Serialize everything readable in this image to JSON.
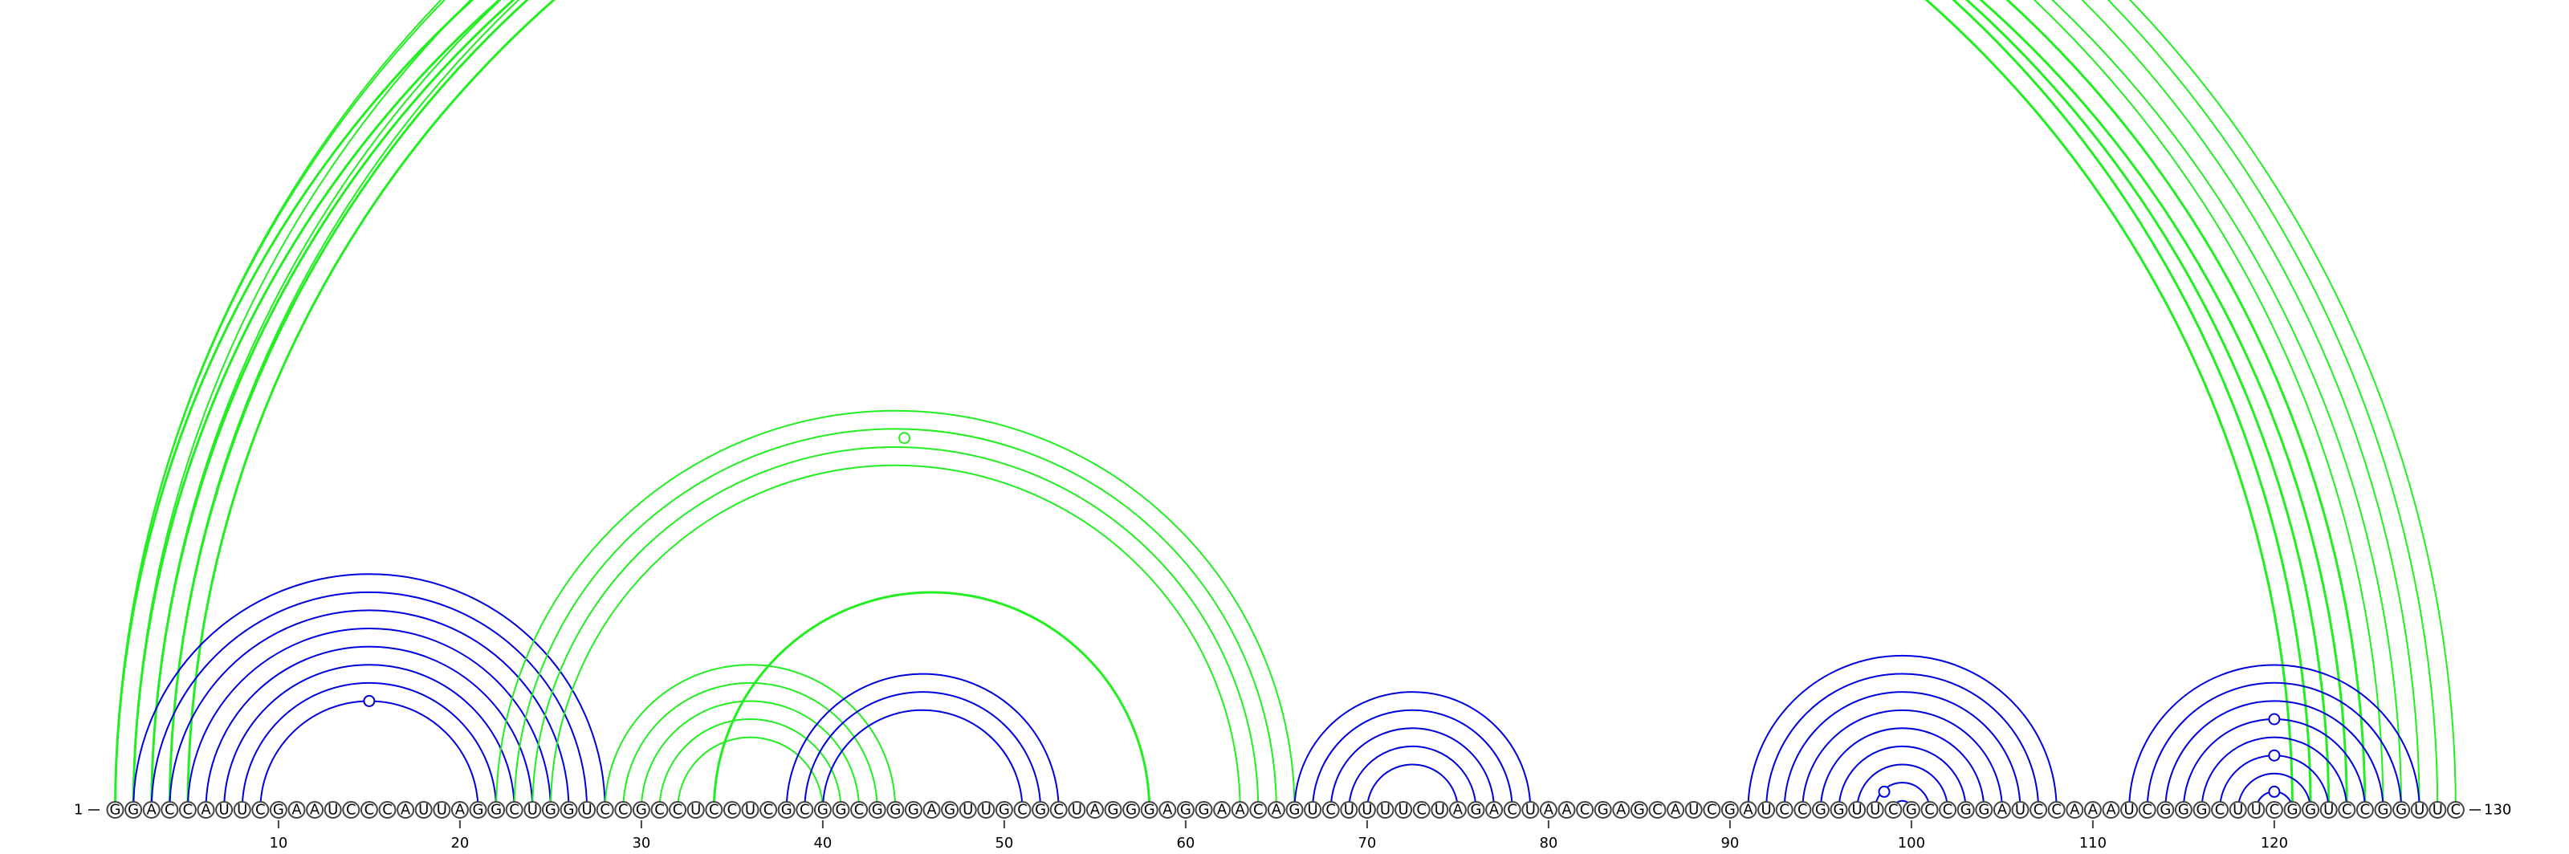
{
  "sequence": "GGACCAUUCGAAUCCCAUUAGGCUGGUCCGCCUCCUCGCGGCGGGAGUUGCGCUAGGGAGGAACAGUCUUUUCUAGACUAACGAGCAUCGAUCCGGUUCGCCGGAUCCAAAUCGGGCUUCGGUCCGGUUC",
  "start_label": "1",
  "end_label": "130",
  "ticks": [
    10,
    20,
    30,
    40,
    50,
    60,
    70,
    80,
    90,
    100,
    110,
    120
  ],
  "colors": {
    "pair_blue": "#0000dd",
    "pair_green": "#22ee22"
  },
  "arc_groups": [
    {
      "color": "green",
      "width": 3,
      "arcs": [
        [
          1,
          122
        ],
        [
          2,
          121
        ],
        [
          3,
          123
        ],
        [
          4,
          125
        ],
        [
          5,
          124
        ]
      ]
    },
    {
      "color": "green",
      "width": 2,
      "arcs": [
        [
          1,
          130
        ],
        [
          1,
          129
        ],
        [
          2,
          128
        ],
        [
          3,
          126
        ],
        [
          4,
          127
        ]
      ]
    },
    {
      "color": "blue",
      "width": 2,
      "arcs": [
        [
          2,
          28
        ],
        [
          3,
          27
        ],
        [
          4,
          26
        ],
        [
          5,
          25
        ],
        [
          6,
          24
        ],
        [
          7,
          23
        ],
        [
          8,
          22
        ],
        [
          9,
          21
        ]
      ]
    },
    {
      "color": "green",
      "width": 2,
      "arcs": [
        [
          22,
          66
        ],
        [
          23,
          65
        ],
        [
          24,
          64
        ],
        [
          25,
          63
        ]
      ]
    },
    {
      "color": "green",
      "width": 2,
      "arcs": [
        [
          28,
          44
        ],
        [
          29,
          43
        ],
        [
          30,
          42
        ],
        [
          31,
          41
        ],
        [
          32,
          40
        ]
      ]
    },
    {
      "color": "green",
      "width": 3,
      "arcs": [
        [
          34,
          58
        ]
      ]
    },
    {
      "color": "blue",
      "width": 2,
      "arcs": [
        [
          38,
          53
        ],
        [
          39,
          52
        ],
        [
          40,
          51
        ]
      ]
    },
    {
      "color": "blue",
      "width": 2,
      "arcs": [
        [
          66,
          79
        ],
        [
          67,
          78
        ],
        [
          68,
          77
        ],
        [
          69,
          76
        ],
        [
          70,
          75
        ]
      ]
    },
    {
      "color": "blue",
      "width": 2,
      "arcs": [
        [
          91,
          108
        ],
        [
          92,
          107
        ],
        [
          93,
          106
        ],
        [
          94,
          105
        ],
        [
          95,
          104
        ],
        [
          96,
          103
        ],
        [
          97,
          102
        ],
        [
          98,
          101
        ],
        [
          99,
          100
        ]
      ]
    },
    {
      "color": "blue",
      "width": 2,
      "arcs": [
        [
          112,
          128
        ],
        [
          113,
          127
        ],
        [
          114,
          126
        ],
        [
          115,
          125
        ],
        [
          116,
          124
        ],
        [
          117,
          123
        ],
        [
          118,
          122
        ],
        [
          119,
          121
        ]
      ]
    }
  ],
  "loop_markers": [
    {
      "position": 65.5,
      "radius": 64.5,
      "color": "green"
    },
    {
      "position": 44.5,
      "radius": 20.5,
      "color": "green"
    },
    {
      "position": 15,
      "radius": 6,
      "color": "blue"
    },
    {
      "position": 98.5,
      "radius": 1,
      "color": "blue"
    },
    {
      "position": 120,
      "radius": 5,
      "color": "blue"
    },
    {
      "position": 120,
      "radius": 3,
      "color": "blue"
    },
    {
      "position": 120,
      "radius": 1,
      "color": "blue"
    }
  ]
}
